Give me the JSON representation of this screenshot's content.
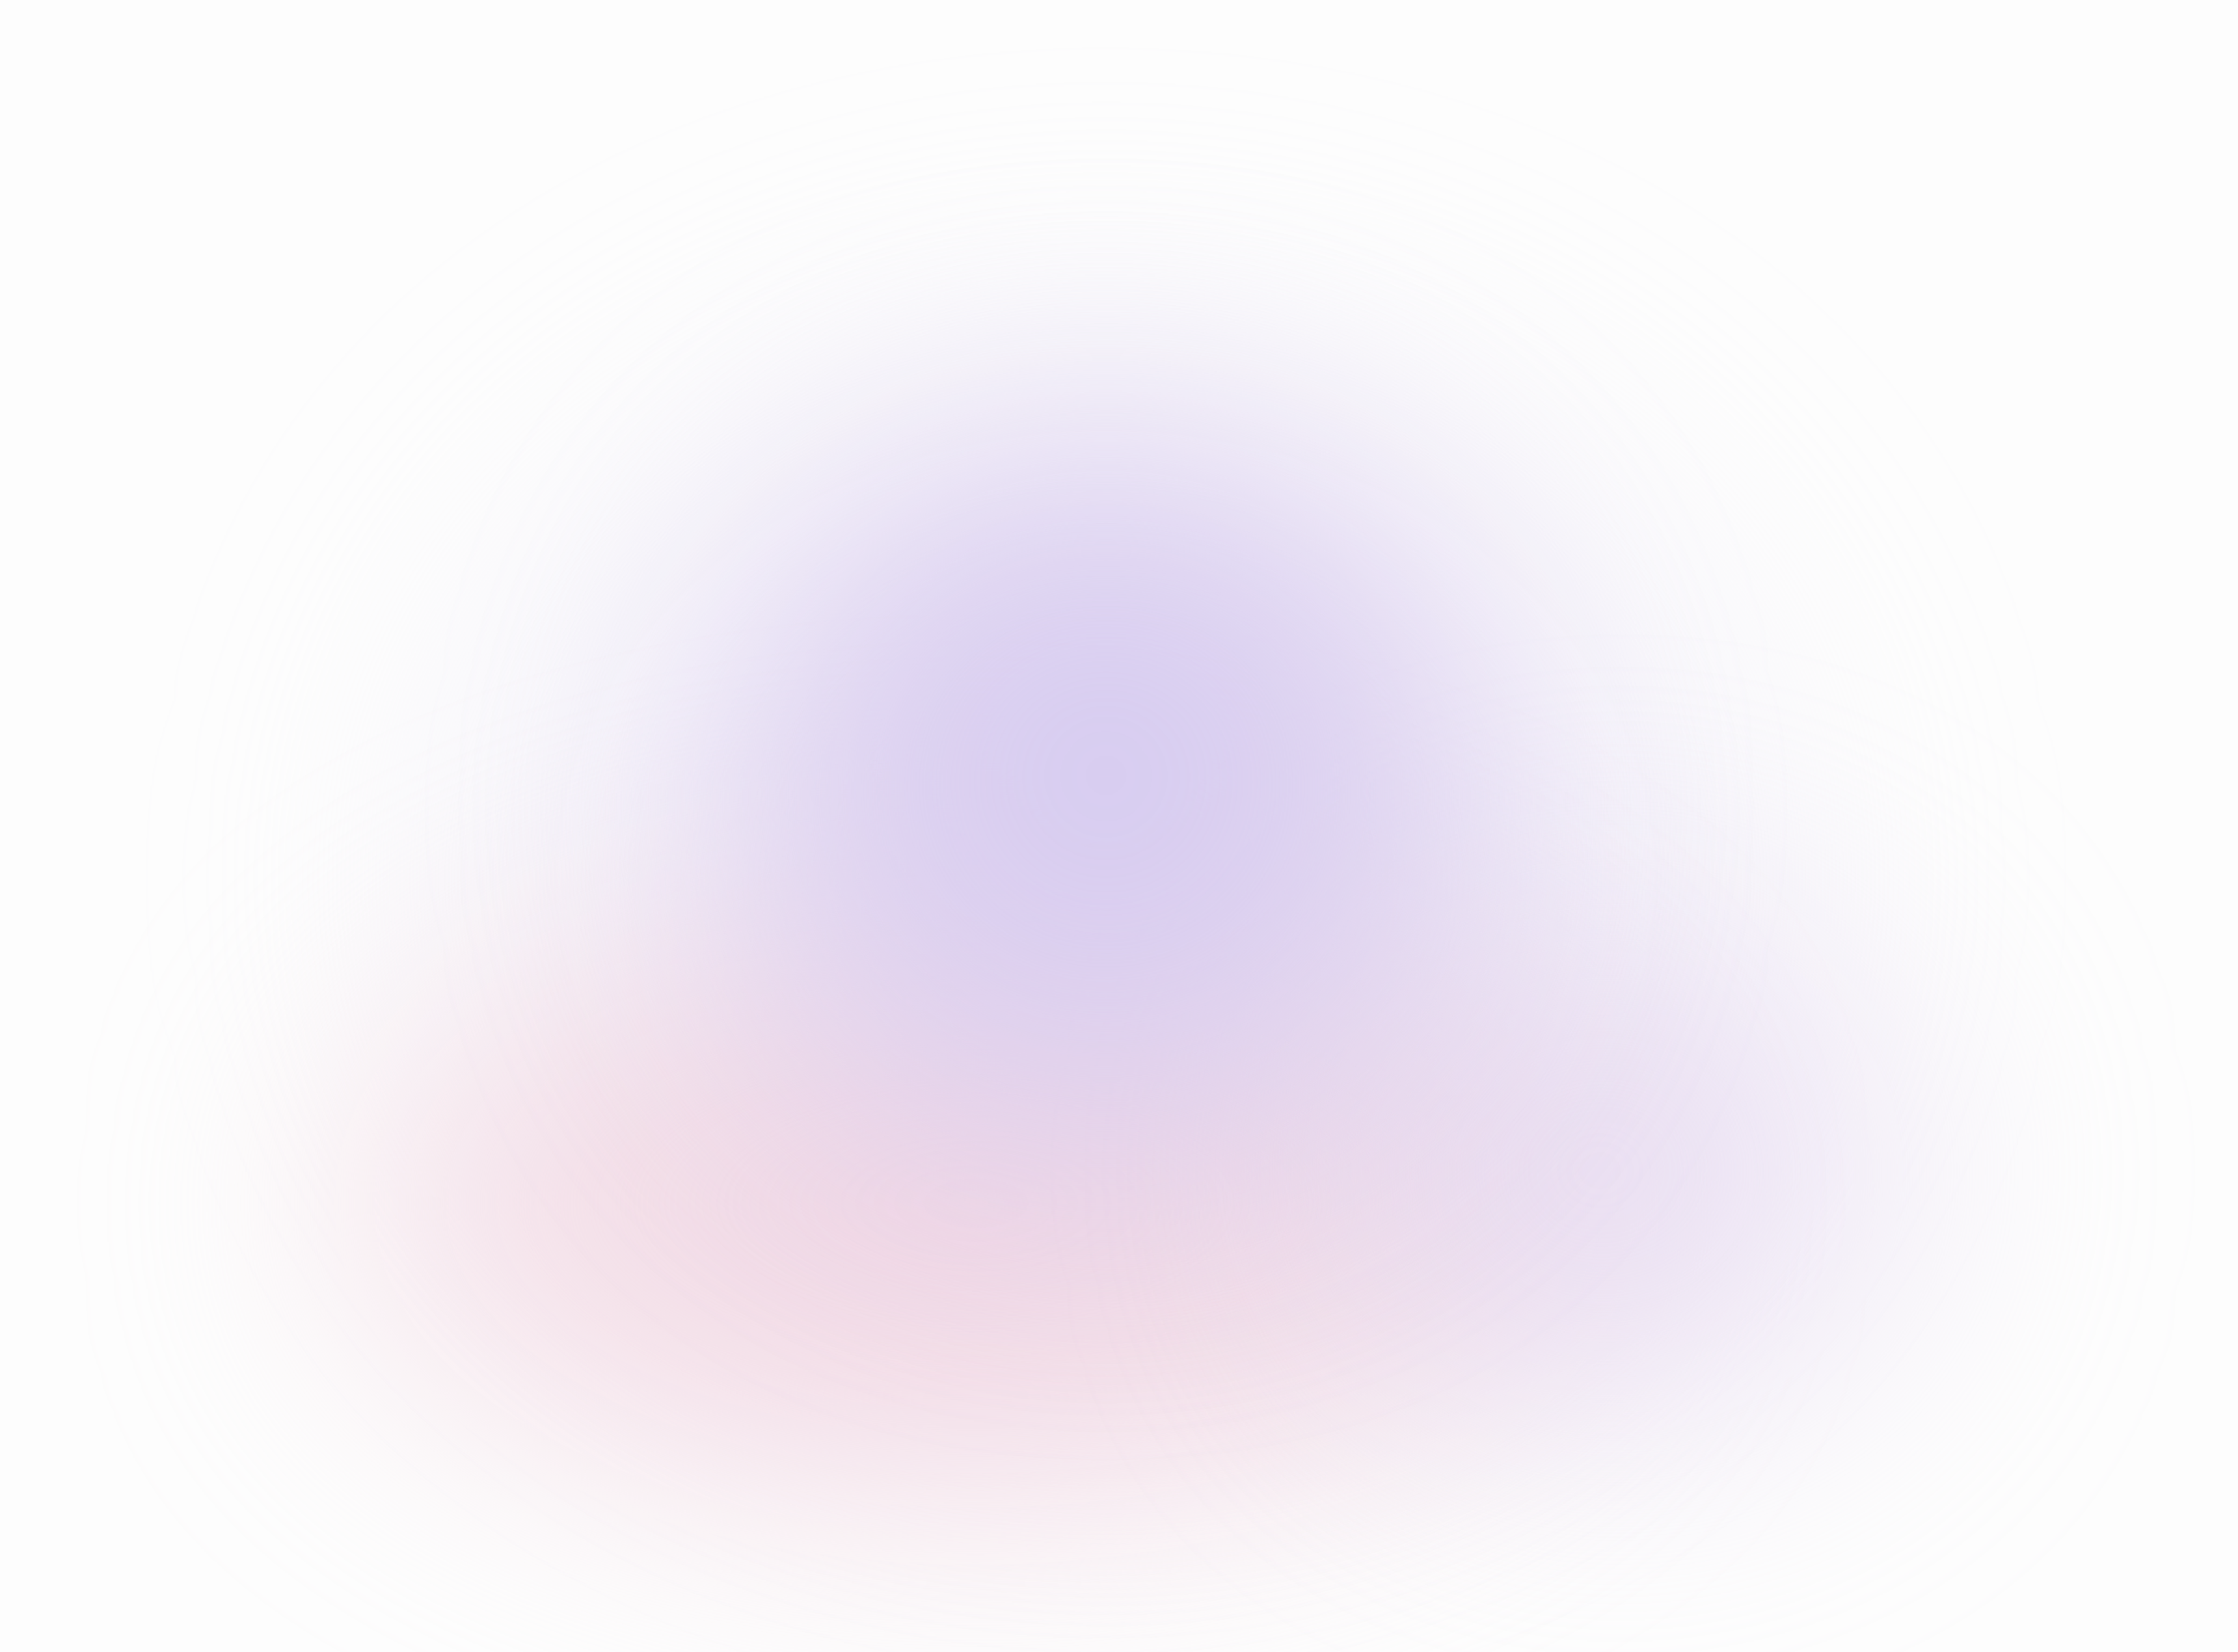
{
  "background": {
    "base_color": "#fdfdfd",
    "gradient_colors": [
      "#d9d0f0",
      "#f0d8e2",
      "#e6d9f0"
    ]
  }
}
